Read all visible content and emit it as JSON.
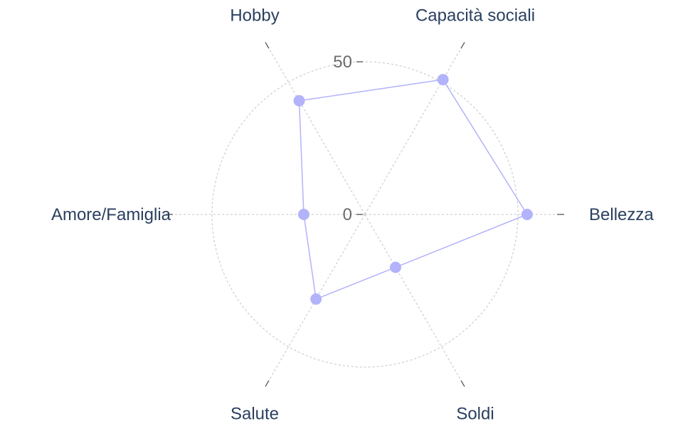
{
  "chart_data": {
    "type": "radar",
    "categories": [
      "Bellezza",
      "Capacità sociali",
      "Hobby",
      "Amore/Famiglia",
      "Salute",
      "Soldi"
    ],
    "values": [
      53,
      51,
      43,
      20,
      32,
      20
    ],
    "radial_ticks": [
      "0",
      "50"
    ],
    "radial_tick_values": [
      0,
      50
    ],
    "radial_range": [
      0,
      50
    ],
    "grid": true,
    "colors": {
      "series": "#b3b3fb",
      "grid": "#d0d0d0",
      "text": "#2a3f5f",
      "tick": "#6b6b6b"
    }
  }
}
